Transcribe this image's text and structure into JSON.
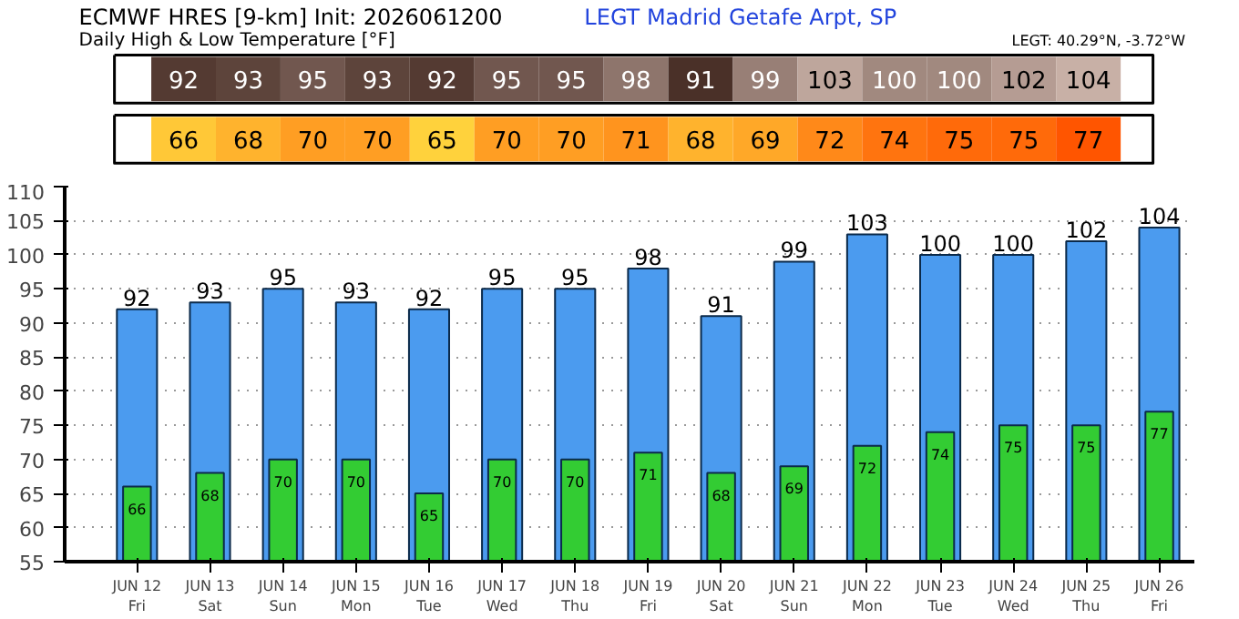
{
  "chart_data": [
    {
      "type": "heatmap",
      "title": "ECMWF HRES [9-km] Init: 2026061200",
      "subtitle": "Daily High & Low Temperature [°F]",
      "annotations": [
        "LEGT Madrid Getafe Arpt,   SP",
        "LEGT: 40.29°N, -3.72°W"
      ],
      "categories": [
        null,
        null,
        null,
        null,
        null,
        null,
        null,
        null,
        null,
        null,
        null,
        null,
        null,
        null,
        null
      ],
      "y_categories": [
        null,
        null
      ],
      "cells": [
        [
          92,
          93,
          95,
          93,
          92,
          95,
          95,
          98,
          91,
          99,
          103,
          100,
          100,
          102,
          104
        ],
        [
          66,
          68,
          70,
          70,
          65,
          70,
          70,
          71,
          68,
          69,
          72,
          74,
          75,
          75,
          77
        ]
      ],
      "cell_labels": [
        [
          "92",
          "93",
          "95",
          "93",
          "92",
          "95",
          "95",
          "98",
          "91",
          "99",
          "103",
          "100",
          "100",
          "102",
          "104"
        ],
        [
          "66",
          "68",
          "70",
          "70",
          "65",
          "70",
          "70",
          "71",
          "68",
          "69",
          "72",
          "74",
          "75",
          "75",
          "77"
        ]
      ]
    },
    {
      "type": "bar",
      "categories": [
        "JUN 12\nFri",
        "JUN 13\nSat",
        "JUN 14\nSun",
        "JUN 15\nMon",
        "JUN 16\nTue",
        "JUN 17\nWed",
        "JUN 18\nThu",
        "JUN 19\nFri",
        "JUN 20\nSat",
        "JUN 21\nSun",
        "JUN 22\nMon",
        "JUN 23\nTue",
        "JUN 24\nWed",
        "JUN 25\nThu",
        "JUN 26\nFri"
      ],
      "series": [
        {
          "color": "#4b9bef",
          "values": [
            92,
            93,
            95,
            93,
            92,
            95,
            95,
            98,
            91,
            99,
            103,
            100,
            100,
            102,
            104
          ]
        },
        {
          "color": "#33cc33",
          "values": [
            66,
            68,
            70,
            70,
            65,
            70,
            70,
            71,
            68,
            69,
            72,
            74,
            75,
            75,
            77
          ]
        }
      ],
      "ylim": [
        55,
        110
      ],
      "yticks": [
        55,
        60,
        65,
        70,
        75,
        80,
        85,
        90,
        95,
        100,
        105,
        110
      ],
      "grid": "y",
      "data_labels": true
    }
  ]
}
